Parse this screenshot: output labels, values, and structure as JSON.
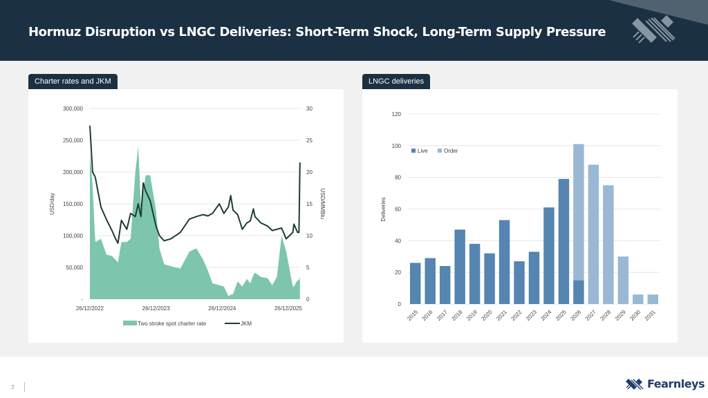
{
  "header": {
    "title": "Hormuz Disruption vs LNGC Deliveries: Short-Term Shock, Long-Term Supply Pressure"
  },
  "colors": {
    "header": "#1b3042",
    "charter_area": "#7dc6ad",
    "jkm_line": "#1d3b33",
    "live": "#5585b0",
    "order": "#9ab8d3"
  },
  "panels": {
    "left_tab": "Charter rates and JKM",
    "right_tab": "LNGC deliveries"
  },
  "footer": {
    "page_number": "3",
    "brand": "Fearnleys"
  },
  "chart_data": [
    {
      "type": "area+line",
      "title": "",
      "ylabel": "USD/day",
      "y2label": "USD/MMBtu",
      "ylim": [
        0,
        300000
      ],
      "y2lim": [
        0,
        30
      ],
      "y_ticks": [
        "-",
        "50,000",
        "100,000",
        "150,000",
        "200,000",
        "250,000",
        "300,000"
      ],
      "y2_ticks": [
        "0",
        "5",
        "10",
        "15",
        "20",
        "25",
        "30"
      ],
      "x_ticks": [
        "26/12/2022",
        "26/12/2023",
        "26/12/2024",
        "26/12/2025"
      ],
      "grid": true,
      "legend": "bottom",
      "series": [
        {
          "name": "Two stroke spot charter rate",
          "kind": "area",
          "axis": "left"
        },
        {
          "name": "JKM",
          "kind": "line",
          "axis": "right"
        }
      ],
      "x": [
        "2022-12-26",
        "2023-01-10",
        "2023-01-23",
        "2023-01-26",
        "2023-02-25",
        "2023-03-28",
        "2023-04-27",
        "2023-05-17",
        "2023-05-30",
        "2023-06-18",
        "2023-07-18",
        "2023-08-08",
        "2023-09-03",
        "2023-09-19",
        "2023-10-04",
        "2023-10-17",
        "2023-10-30",
        "2023-11-24",
        "2023-12-26",
        "2024-01-14",
        "2024-02-09",
        "2024-03-18",
        "2024-05-08",
        "2024-06-28",
        "2024-08-05",
        "2024-09-12",
        "2024-10-08",
        "2024-11-02",
        "2024-12-10",
        "2025-01-04",
        "2025-01-29",
        "2025-02-11",
        "2025-02-24",
        "2025-03-21",
        "2025-04-16",
        "2025-05-11",
        "2025-05-30",
        "2025-06-16",
        "2025-06-25",
        "2025-07-27",
        "2025-09-03",
        "2025-09-28",
        "2025-10-24",
        "2025-11-19",
        "2025-12-14",
        "2026-01-20",
        "2026-01-26",
        "2026-02-15",
        "2026-02-23",
        "2026-02-28"
      ],
      "charter_rate": [
        230000,
        180000,
        100000,
        90000,
        95000,
        70000,
        68000,
        62000,
        58000,
        90000,
        90000,
        95000,
        200000,
        240000,
        150000,
        170000,
        195000,
        195000,
        140000,
        80000,
        55000,
        52000,
        48000,
        75000,
        80000,
        62000,
        45000,
        25000,
        22000,
        20000,
        5000,
        7000,
        8000,
        28000,
        20000,
        32000,
        25000,
        38000,
        42000,
        35000,
        33000,
        22000,
        35000,
        100000,
        75000,
        20000,
        20000,
        30000,
        30000,
        35000
      ],
      "jkm": [
        27.3,
        20,
        19.3,
        19,
        14.5,
        12.5,
        10.8,
        9.5,
        8.8,
        12.4,
        11,
        13.5,
        13,
        15,
        13,
        18.3,
        17,
        15.5,
        11.5,
        10,
        9.2,
        9.5,
        10.5,
        12.6,
        13,
        13.3,
        13.1,
        13.5,
        15,
        13.5,
        14.5,
        16.3,
        14,
        13.3,
        11,
        12,
        12.3,
        14.2,
        13,
        12,
        11.5,
        10.8,
        11,
        11.2,
        9.5,
        10.5,
        11.8,
        10.5,
        10.5,
        21.5
      ]
    },
    {
      "type": "bar",
      "stacked": true,
      "title": "",
      "ylabel": "Deliveries",
      "ylim": [
        0,
        120
      ],
      "y_ticks": [
        "0",
        "20",
        "40",
        "60",
        "80",
        "100",
        "120"
      ],
      "grid": true,
      "legend": "top-left",
      "categories": [
        "2015",
        "2016",
        "2017",
        "2018",
        "2019",
        "2020",
        "2021",
        "2022",
        "2023",
        "2024",
        "2025",
        "2026",
        "2027",
        "2028",
        "2029",
        "2030",
        "2031"
      ],
      "series": [
        {
          "name": "Live",
          "values": [
            26,
            29,
            24,
            47,
            38,
            32,
            53,
            27,
            33,
            61,
            79,
            15,
            0,
            0,
            0,
            0,
            0
          ]
        },
        {
          "name": "Order",
          "values": [
            0,
            0,
            0,
            0,
            0,
            0,
            0,
            0,
            0,
            0,
            0,
            86,
            88,
            75,
            30,
            6,
            6
          ]
        }
      ]
    }
  ]
}
